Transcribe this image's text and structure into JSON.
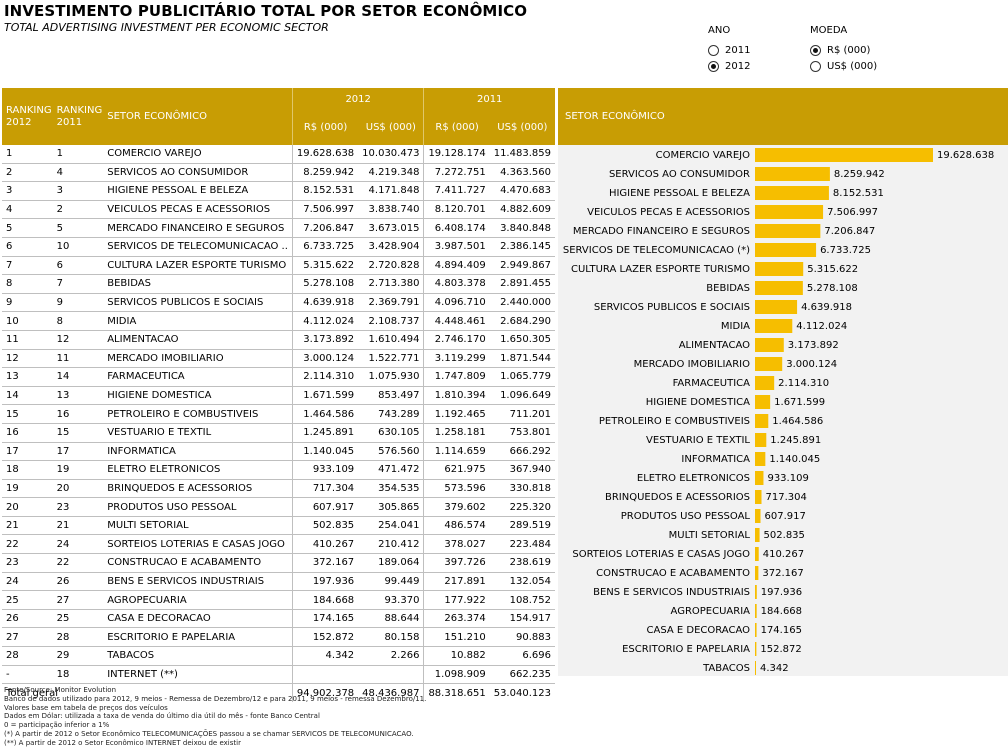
{
  "title": "INVESTIMENTO PUBLICITÁRIO TOTAL POR SETOR ECONÔMICO",
  "subtitle": "TOTAL ADVERTISING INVESTMENT PER ECONOMIC SECTOR",
  "controls": {
    "ano": {
      "label": "ANO",
      "options": [
        "2011",
        "2012"
      ],
      "selected": "2012"
    },
    "moeda": {
      "label": "MOEDA",
      "options": [
        "R$ (000)",
        "US$ (000)"
      ],
      "selected": "R$ (000)"
    }
  },
  "table": {
    "headers": {
      "rank2012": "RANKING 2012",
      "rank2011": "RANKING 2011",
      "sector": "SETOR ECONÔMICO",
      "year2012": "2012",
      "year2011": "2011",
      "brl": "R$ (000)",
      "usd": "US$ (000)"
    },
    "rows": [
      [
        "1",
        "1",
        "COMERCIO VAREJO",
        "19.628.638",
        "10.030.473",
        "19.128.174",
        "11.483.859"
      ],
      [
        "2",
        "4",
        "SERVICOS AO CONSUMIDOR",
        "8.259.942",
        "4.219.348",
        "7.272.751",
        "4.363.560"
      ],
      [
        "3",
        "3",
        "HIGIENE PESSOAL E BELEZA",
        "8.152.531",
        "4.171.848",
        "7.411.727",
        "4.470.683"
      ],
      [
        "4",
        "2",
        "VEICULOS PECAS E ACESSORIOS",
        "7.506.997",
        "3.838.740",
        "8.120.701",
        "4.882.609"
      ],
      [
        "5",
        "5",
        "MERCADO FINANCEIRO E SEGUROS",
        "7.206.847",
        "3.673.015",
        "6.408.174",
        "3.840.848"
      ],
      [
        "6",
        "10",
        "SERVICOS DE TELECOMUNICACAO ..",
        "6.733.725",
        "3.428.904",
        "3.987.501",
        "2.386.145"
      ],
      [
        "7",
        "6",
        "CULTURA LAZER ESPORTE TURISMO",
        "5.315.622",
        "2.720.828",
        "4.894.409",
        "2.949.867"
      ],
      [
        "8",
        "7",
        "BEBIDAS",
        "5.278.108",
        "2.713.380",
        "4.803.378",
        "2.891.455"
      ],
      [
        "9",
        "9",
        "SERVICOS PUBLICOS E SOCIAIS",
        "4.639.918",
        "2.369.791",
        "4.096.710",
        "2.440.000"
      ],
      [
        "10",
        "8",
        "MIDIA",
        "4.112.024",
        "2.108.737",
        "4.448.461",
        "2.684.290"
      ],
      [
        "11",
        "12",
        "ALIMENTACAO",
        "3.173.892",
        "1.610.494",
        "2.746.170",
        "1.650.305"
      ],
      [
        "12",
        "11",
        "MERCADO IMOBILIARIO",
        "3.000.124",
        "1.522.771",
        "3.119.299",
        "1.871.544"
      ],
      [
        "13",
        "14",
        "FARMACEUTICA",
        "2.114.310",
        "1.075.930",
        "1.747.809",
        "1.065.779"
      ],
      [
        "14",
        "13",
        "HIGIENE DOMESTICA",
        "1.671.599",
        "853.497",
        "1.810.394",
        "1.096.649"
      ],
      [
        "15",
        "16",
        "PETROLEIRO E COMBUSTIVEIS",
        "1.464.586",
        "743.289",
        "1.192.465",
        "711.201"
      ],
      [
        "16",
        "15",
        "VESTUARIO E TEXTIL",
        "1.245.891",
        "630.105",
        "1.258.181",
        "753.801"
      ],
      [
        "17",
        "17",
        "INFORMATICA",
        "1.140.045",
        "576.560",
        "1.114.659",
        "666.292"
      ],
      [
        "18",
        "19",
        "ELETRO ELETRONICOS",
        "933.109",
        "471.472",
        "621.975",
        "367.940"
      ],
      [
        "19",
        "20",
        "BRINQUEDOS E ACESSORIOS",
        "717.304",
        "354.535",
        "573.596",
        "330.818"
      ],
      [
        "20",
        "23",
        "PRODUTOS USO PESSOAL",
        "607.917",
        "305.865",
        "379.602",
        "225.320"
      ],
      [
        "21",
        "21",
        "MULTI SETORIAL",
        "502.835",
        "254.041",
        "486.574",
        "289.519"
      ],
      [
        "22",
        "24",
        "SORTEIOS LOTERIAS E CASAS JOGO",
        "410.267",
        "210.412",
        "378.027",
        "223.484"
      ],
      [
        "23",
        "22",
        "CONSTRUCAO E ACABAMENTO",
        "372.167",
        "189.064",
        "397.726",
        "238.619"
      ],
      [
        "24",
        "26",
        "BENS E SERVICOS INDUSTRIAIS",
        "197.936",
        "99.449",
        "217.891",
        "132.054"
      ],
      [
        "25",
        "27",
        "AGROPECUARIA",
        "184.668",
        "93.370",
        "177.922",
        "108.752"
      ],
      [
        "26",
        "25",
        "CASA E DECORACAO",
        "174.165",
        "88.644",
        "263.374",
        "154.917"
      ],
      [
        "27",
        "28",
        "ESCRITORIO E PAPELARIA",
        "152.872",
        "80.158",
        "151.210",
        "90.883"
      ],
      [
        "28",
        "29",
        "TABACOS",
        "4.342",
        "2.266",
        "10.882",
        "6.696"
      ],
      [
        "-",
        "18",
        "INTERNET (**)",
        "",
        "",
        "1.098.909",
        "662.235"
      ]
    ],
    "total": [
      "Total geral",
      "94.902.378",
      "48.436.987",
      "88.318.651",
      "53.040.123"
    ]
  },
  "chart_header": "SETOR ECONÔMICO",
  "chart_data": {
    "type": "bar",
    "orientation": "horizontal",
    "categories": [
      "COMERCIO VAREJO",
      "SERVICOS AO CONSUMIDOR",
      "HIGIENE PESSOAL E BELEZA",
      "VEICULOS PECAS E ACESSORIOS",
      "MERCADO FINANCEIRO E SEGUROS",
      "SERVICOS DE TELECOMUNICACAO (*)",
      "CULTURA LAZER ESPORTE TURISMO",
      "BEBIDAS",
      "SERVICOS PUBLICOS E SOCIAIS",
      "MIDIA",
      "ALIMENTACAO",
      "MERCADO IMOBILIARIO",
      "FARMACEUTICA",
      "HIGIENE DOMESTICA",
      "PETROLEIRO E COMBUSTIVEIS",
      "VESTUARIO E TEXTIL",
      "INFORMATICA",
      "ELETRO ELETRONICOS",
      "BRINQUEDOS E ACESSORIOS",
      "PRODUTOS USO PESSOAL",
      "MULTI SETORIAL",
      "SORTEIOS LOTERIAS E CASAS JOGO",
      "CONSTRUCAO E ACABAMENTO",
      "BENS E SERVICOS INDUSTRIAIS",
      "AGROPECUARIA",
      "CASA E DECORACAO",
      "ESCRITORIO E PAPELARIA",
      "TABACOS"
    ],
    "values": [
      19628638,
      8259942,
      8152531,
      7506997,
      7206847,
      6733725,
      5315622,
      5278108,
      4639918,
      4112024,
      3173892,
      3000124,
      2114310,
      1671599,
      1464586,
      1245891,
      1140045,
      933109,
      717304,
      607917,
      502835,
      410267,
      372167,
      197936,
      184668,
      174165,
      152872,
      4342
    ],
    "labels": [
      "19.628.638",
      "8.259.942",
      "8.152.531",
      "7.506.997",
      "7.206.847",
      "6.733.725",
      "5.315.622",
      "5.278.108",
      "4.639.918",
      "4.112.024",
      "3.173.892",
      "3.000.124",
      "2.114.310",
      "1.671.599",
      "1.464.586",
      "1.245.891",
      "1.140.045",
      "933.109",
      "717.304",
      "607.917",
      "502.835",
      "410.267",
      "372.167",
      "197.936",
      "184.668",
      "174.165",
      "152.872",
      "4.342"
    ],
    "xlim": [
      0,
      19628638
    ],
    "color": "#f6be00",
    "grid": false
  },
  "notes": [
    "Fonte/Source: Monitor Evolution",
    "Banco de dados utilizado para 2012, 9 meios - Remessa de Dezembro/12 e para 2011, 9 meios - remessa Dezembro/11.",
    "Valores base em tabela de preços dos veículos",
    "Dados em Dólar: utilizada a taxa de venda do último dia útil do mês - fonte Banco Central",
    "0 = participação inferior a 1%",
    "(*) A partir de 2012 o Setor Econômico TELECOMUNICAÇÕES passou a se chamar SERVICOS DE TELECOMUNICACAO.",
    "(**) A partir de 2012 o Setor Econômico INTERNET deixou de existir"
  ]
}
